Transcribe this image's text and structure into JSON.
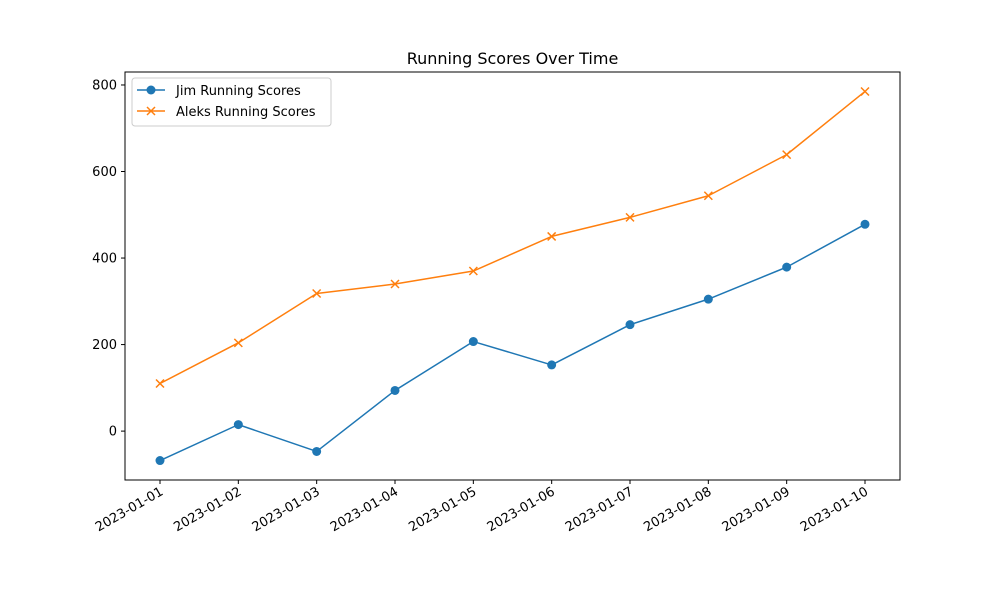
{
  "chart_data": {
    "type": "line",
    "title": "Running Scores Over Time",
    "xlabel": "",
    "ylabel": "",
    "x": [
      "2023-01-01",
      "2023-01-02",
      "2023-01-03",
      "2023-01-04",
      "2023-01-05",
      "2023-01-06",
      "2023-01-07",
      "2023-01-08",
      "2023-01-09",
      "2023-01-10"
    ],
    "series": [
      {
        "name": "Jim Running Scores",
        "color": "#1f77b4",
        "marker": "circle",
        "values": [
          -68,
          15,
          -47,
          94,
          207,
          153,
          246,
          305,
          379,
          478
        ]
      },
      {
        "name": "Aleks Running Scores",
        "color": "#ff7f0e",
        "marker": "x",
        "values": [
          110,
          204,
          318,
          340,
          370,
          450,
          494,
          544,
          639,
          785
        ]
      }
    ],
    "ylim": [
      -113,
      830
    ],
    "yticks": [
      0,
      200,
      400,
      600,
      800
    ],
    "grid": false,
    "legend_position": "upper-left"
  }
}
